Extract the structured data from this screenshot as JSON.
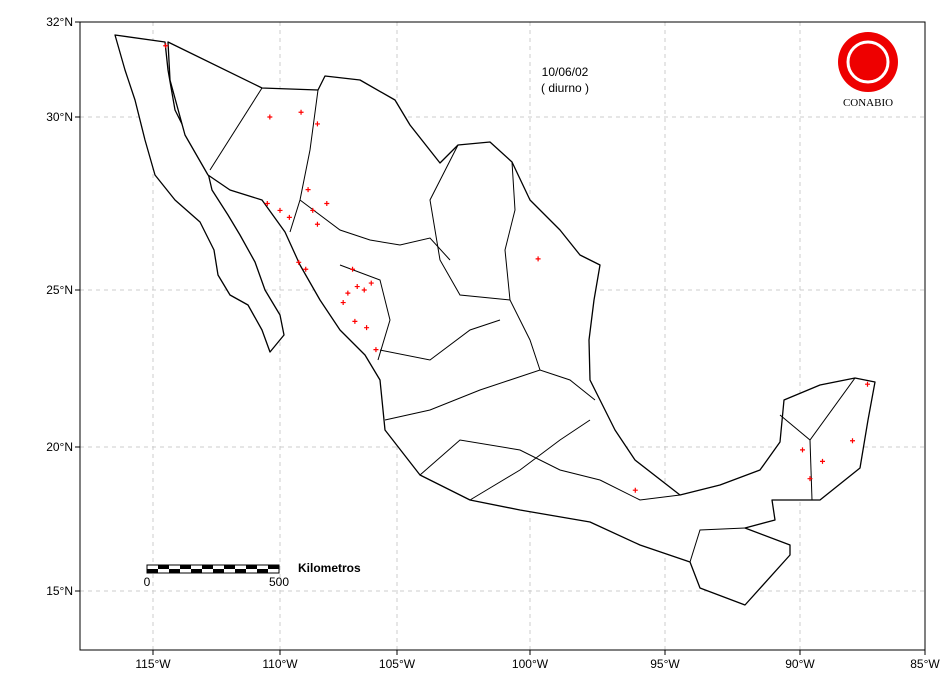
{
  "header": {
    "date": "10/06/02",
    "period": "( diurno )"
  },
  "logo": {
    "label": "CONABIO"
  },
  "scale_bar": {
    "unit": "Kilometros",
    "start": 0,
    "end": 500
  },
  "axes": {
    "x_ticks": [
      {
        "value": -115,
        "label": "115°W"
      },
      {
        "value": -110,
        "label": "110°W"
      },
      {
        "value": -105,
        "label": "105°W"
      },
      {
        "value": -100,
        "label": "100°W"
      },
      {
        "value": -95,
        "label": "95°W"
      },
      {
        "value": -90,
        "label": "90°W"
      },
      {
        "value": -85,
        "label": "85°W"
      }
    ],
    "y_ticks": [
      {
        "value": 32,
        "label": "32°N"
      },
      {
        "value": 30,
        "label": "30°N"
      },
      {
        "value": 25,
        "label": "25°N"
      },
      {
        "value": 20,
        "label": "20°N"
      },
      {
        "value": 15,
        "label": "15°N"
      }
    ]
  },
  "fire_points": [
    {
      "lon": -114.5,
      "lat": 31.5
    },
    {
      "lon": -110.4,
      "lat": 30.0
    },
    {
      "lon": -109.1,
      "lat": 30.1
    },
    {
      "lon": -108.4,
      "lat": 29.8
    },
    {
      "lon": -110.5,
      "lat": 27.5
    },
    {
      "lon": -110.0,
      "lat": 27.3
    },
    {
      "lon": -109.6,
      "lat": 27.1
    },
    {
      "lon": -108.8,
      "lat": 27.9
    },
    {
      "lon": -108.6,
      "lat": 27.3
    },
    {
      "lon": -108.0,
      "lat": 27.5
    },
    {
      "lon": -108.4,
      "lat": 26.9
    },
    {
      "lon": -109.2,
      "lat": 25.8
    },
    {
      "lon": -108.9,
      "lat": 25.6
    },
    {
      "lon": -106.9,
      "lat": 25.6
    },
    {
      "lon": -106.7,
      "lat": 25.1
    },
    {
      "lon": -106.4,
      "lat": 25.0
    },
    {
      "lon": -106.1,
      "lat": 25.2
    },
    {
      "lon": -107.1,
      "lat": 24.9
    },
    {
      "lon": -107.3,
      "lat": 24.6
    },
    {
      "lon": -106.8,
      "lat": 24.0
    },
    {
      "lon": -106.3,
      "lat": 23.8
    },
    {
      "lon": -105.9,
      "lat": 23.1
    },
    {
      "lon": -99.7,
      "lat": 25.9
    },
    {
      "lon": -89.9,
      "lat": 19.9
    },
    {
      "lon": -89.1,
      "lat": 19.5
    },
    {
      "lon": -89.6,
      "lat": 18.9
    },
    {
      "lon": -96.1,
      "lat": 18.5
    },
    {
      "lon": -87.3,
      "lat": 22.0
    },
    {
      "lon": -87.9,
      "lat": 20.2
    }
  ]
}
